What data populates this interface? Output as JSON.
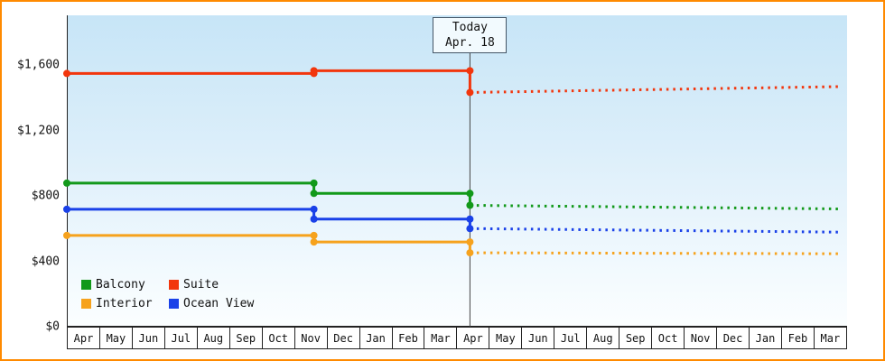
{
  "today_box": {
    "line1": "Today",
    "line2": "Apr. 18"
  },
  "legend": [
    {
      "label": "Balcony",
      "color": "#12991a"
    },
    {
      "label": "Suite",
      "color": "#f2360d"
    },
    {
      "label": "Interior",
      "color": "#f6a21d"
    },
    {
      "label": "Ocean View",
      "color": "#1a41e8"
    }
  ],
  "colors": {
    "frame_border": "#ff8a00",
    "axis": "#222222",
    "today_line": "#444444",
    "plot_bg_top": "#c7e5f7",
    "plot_bg_bottom": "#fbfeff"
  },
  "chart_data": {
    "type": "line",
    "title": "",
    "xlabel": "",
    "ylabel": "",
    "ylim": [
      0,
      1900
    ],
    "grid": false,
    "legend_position": "bottom-left-inside",
    "x_tick_labels": [
      "Apr",
      "May",
      "Jun",
      "Jul",
      "Aug",
      "Sep",
      "Oct",
      "Nov",
      "Dec",
      "Jan",
      "Feb",
      "Mar",
      "Apr",
      "May",
      "Jun",
      "Jul",
      "Aug",
      "Sep",
      "Oct",
      "Nov",
      "Dec",
      "Jan",
      "Feb",
      "Mar"
    ],
    "y_ticks": [
      {
        "label": "$1,600",
        "value": 1600
      },
      {
        "label": "$1,200",
        "value": 1200
      },
      {
        "label": "$800",
        "value": 800
      },
      {
        "label": "$400",
        "value": 400
      },
      {
        "label": "$0",
        "value": 0
      }
    ],
    "today_x": 12.4,
    "today_label": "Today Apr. 18",
    "series": [
      {
        "name": "Suite",
        "color": "#f2360d",
        "solid": [
          [
            0,
            1548
          ],
          [
            7.6,
            1548
          ],
          [
            7.6,
            1565
          ],
          [
            12.4,
            1565
          ],
          [
            12.4,
            1432
          ]
        ],
        "dashed": [
          [
            12.4,
            1432
          ],
          [
            23.8,
            1468
          ]
        ],
        "markers": [
          [
            0,
            1548
          ],
          [
            7.6,
            1548
          ],
          [
            7.6,
            1565
          ],
          [
            12.4,
            1565
          ],
          [
            12.4,
            1432
          ]
        ]
      },
      {
        "name": "Balcony",
        "color": "#12991a",
        "solid": [
          [
            0,
            878
          ],
          [
            7.6,
            878
          ],
          [
            7.6,
            815
          ],
          [
            12.4,
            815
          ],
          [
            12.4,
            742
          ]
        ],
        "dashed": [
          [
            12.4,
            742
          ],
          [
            23.8,
            720
          ]
        ],
        "markers": [
          [
            0,
            878
          ],
          [
            7.6,
            878
          ],
          [
            7.6,
            815
          ],
          [
            12.4,
            815
          ],
          [
            12.4,
            742
          ]
        ]
      },
      {
        "name": "Ocean View",
        "color": "#1a41e8",
        "solid": [
          [
            0,
            718
          ],
          [
            7.6,
            718
          ],
          [
            7.6,
            658
          ],
          [
            12.4,
            658
          ],
          [
            12.4,
            600
          ]
        ],
        "dashed": [
          [
            12.4,
            600
          ],
          [
            23.8,
            578
          ]
        ],
        "markers": [
          [
            0,
            718
          ],
          [
            7.6,
            718
          ],
          [
            7.6,
            658
          ],
          [
            12.4,
            658
          ],
          [
            12.4,
            600
          ]
        ]
      },
      {
        "name": "Interior",
        "color": "#f6a21d",
        "solid": [
          [
            0,
            558
          ],
          [
            7.6,
            558
          ],
          [
            7.6,
            518
          ],
          [
            12.4,
            518
          ],
          [
            12.4,
            452
          ]
        ],
        "dashed": [
          [
            12.4,
            452
          ],
          [
            23.8,
            446
          ]
        ],
        "markers": [
          [
            0,
            558
          ],
          [
            7.6,
            558
          ],
          [
            7.6,
            518
          ],
          [
            12.4,
            518
          ],
          [
            12.4,
            452
          ]
        ]
      }
    ]
  }
}
